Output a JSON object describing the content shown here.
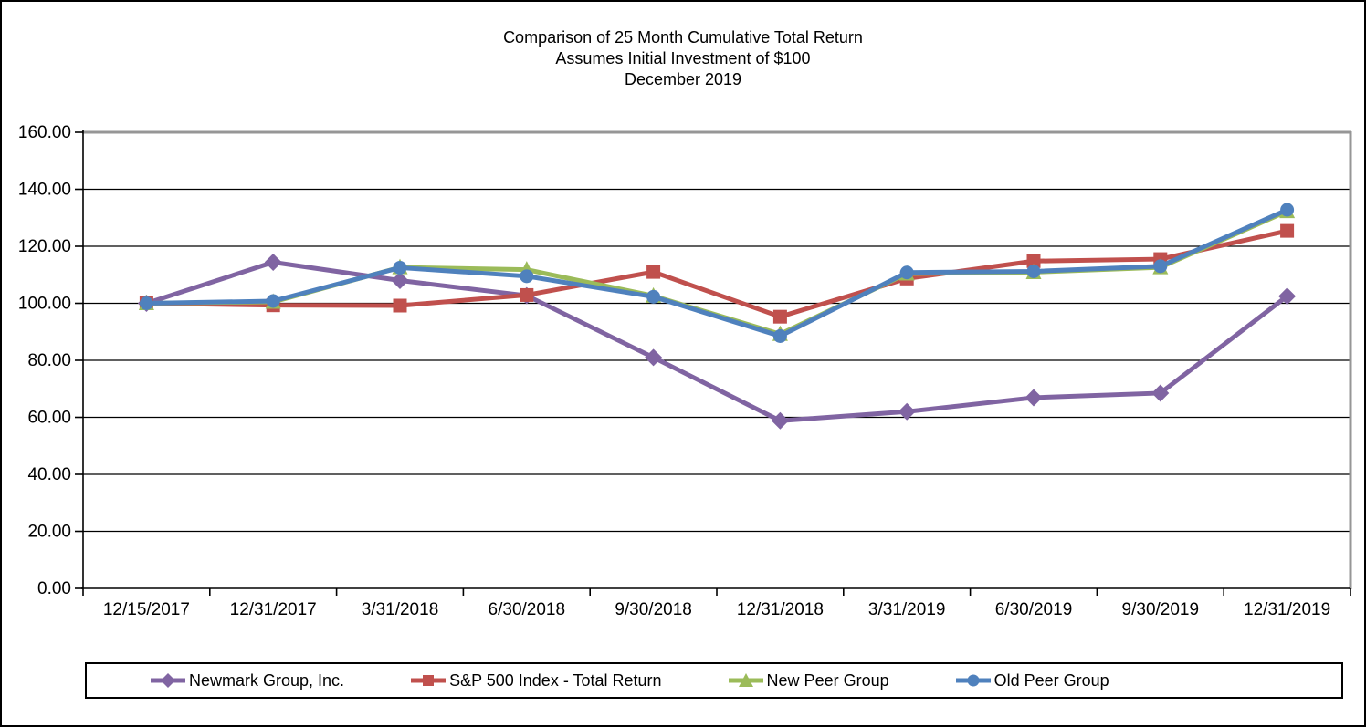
{
  "chart_data": {
    "type": "line",
    "title": "Comparison of 25 Month Cumulative Total Return",
    "subtitle": "Assumes Initial Investment of $100",
    "period": "December 2019",
    "categories": [
      "12/15/2017",
      "12/31/2017",
      "3/31/2018",
      "6/30/2018",
      "9/30/2018",
      "12/31/2018",
      "3/31/2019",
      "6/30/2019",
      "9/30/2019",
      "12/31/2019"
    ],
    "series": [
      {
        "name": "Newmark Group, Inc.",
        "color": "#8064A2",
        "marker": "diamond",
        "values": [
          100.0,
          114.4,
          108.0,
          102.7,
          81.0,
          58.8,
          62.0,
          66.9,
          68.5,
          102.5
        ]
      },
      {
        "name": "S&P 500 Index - Total Return",
        "color": "#C0504D",
        "marker": "square",
        "values": [
          100.0,
          99.3,
          99.2,
          102.9,
          111.0,
          95.3,
          108.7,
          114.8,
          115.5,
          125.4
        ]
      },
      {
        "name": "New Peer Group",
        "color": "#9BBB59",
        "marker": "triangle",
        "values": [
          100.0,
          100.5,
          112.6,
          111.8,
          102.6,
          89.2,
          110.4,
          110.9,
          112.6,
          132.3
        ]
      },
      {
        "name": "Old Peer Group",
        "color": "#4F81BD",
        "marker": "circle",
        "values": [
          100.0,
          100.8,
          112.5,
          109.5,
          102.3,
          88.5,
          110.8,
          111.2,
          113.0,
          132.8
        ]
      }
    ],
    "y_axis": {
      "min": 0,
      "max": 160,
      "step": 20,
      "tick_labels": [
        "0.00",
        "20.00",
        "40.00",
        "60.00",
        "80.00",
        "100.00",
        "120.00",
        "140.00",
        "160.00"
      ]
    },
    "grid": true,
    "legend_position": "bottom",
    "colors": {
      "plot_border": "#969696",
      "gridline": "#000000",
      "axis": "#000000",
      "text": "#000000"
    }
  }
}
